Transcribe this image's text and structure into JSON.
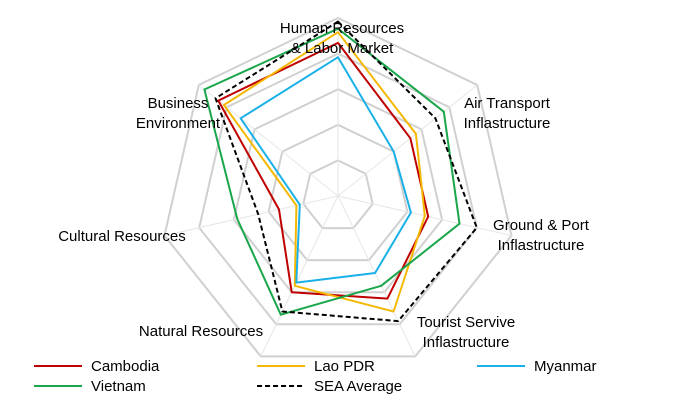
{
  "chart_data": {
    "type": "radar",
    "title": "",
    "axes": [
      {
        "id": "hr",
        "label_lines": [
          "Human Resources",
          "& Labor Market"
        ]
      },
      {
        "id": "air",
        "label_lines": [
          "Air Transport",
          "Inflastructure"
        ]
      },
      {
        "id": "ground",
        "label_lines": [
          "Ground & Port",
          "Inflastructure"
        ]
      },
      {
        "id": "tourist",
        "label_lines": [
          "Tourist Servive",
          "Inflastructure"
        ]
      },
      {
        "id": "natural",
        "label_lines": [
          "Natural Resources"
        ]
      },
      {
        "id": "cultural",
        "label_lines": [
          "Cultural Resources"
        ]
      },
      {
        "id": "business",
        "label_lines": [
          "Business",
          "Environment"
        ]
      }
    ],
    "range": [
      0,
      5
    ],
    "grid_levels": [
      1,
      2,
      3,
      4,
      5
    ],
    "series": [
      {
        "name": "Cambodia",
        "color": "#c00000",
        "dash": "solid",
        "values": [
          4.3,
          2.6,
          2.6,
          3.2,
          3.0,
          1.7,
          4.3
        ]
      },
      {
        "name": "Lao PDR",
        "color": "#f5b800",
        "dash": "solid",
        "values": [
          4.6,
          2.8,
          2.5,
          3.6,
          2.8,
          1.2,
          4.1
        ]
      },
      {
        "name": "Myanmar",
        "color": "#1ab0e8",
        "dash": "solid",
        "values": [
          3.9,
          2.0,
          2.1,
          2.4,
          2.7,
          1.1,
          3.5
        ]
      },
      {
        "name": "Vietnam",
        "color": "#1aa64a",
        "dash": "solid",
        "values": [
          4.7,
          3.8,
          3.5,
          2.8,
          3.7,
          2.9,
          4.8
        ]
      },
      {
        "name": "SEA Average",
        "color": "#000000",
        "dash": "dashed",
        "values": [
          4.9,
          3.5,
          4.0,
          3.9,
          3.6,
          2.3,
          4.4
        ]
      }
    ],
    "legend": {
      "position": "bottom",
      "columns": 3
    }
  }
}
